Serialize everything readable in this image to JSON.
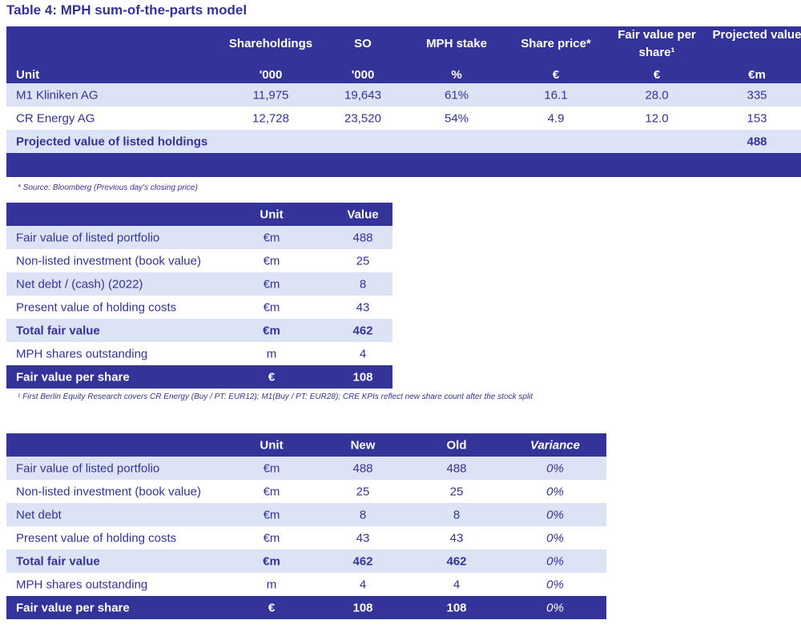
{
  "title": "Table 4: MPH sum-of-the-parts model",
  "table1": {
    "headers": [
      "Shareholdings",
      "SO",
      "MPH stake",
      "Share price*",
      "Fair value per share¹",
      "Projected value"
    ],
    "unit_label": "Unit",
    "units": [
      "'000",
      "'000",
      "%",
      "€",
      "€",
      "€m"
    ],
    "rows": [
      {
        "name": "M1 Kliniken AG",
        "values": [
          "11,975",
          "19,643",
          "61%",
          "16.1",
          "28.0",
          "335"
        ]
      },
      {
        "name": "CR Energy AG",
        "values": [
          "12,728",
          "23,520",
          "54%",
          "4.9",
          "12.0",
          "153"
        ]
      }
    ],
    "total": {
      "name": "Projected value of listed holdings",
      "value": "488"
    }
  },
  "source_note": "* Source: Bloomberg (Previous day's closing price)",
  "table2": {
    "headers": [
      "Unit",
      "Value"
    ],
    "rows": [
      [
        "Fair value of listed portfolio",
        "€m",
        "488"
      ],
      [
        "Non-listed investment (book value)",
        "€m",
        "25"
      ],
      [
        "Net debt / (cash) (2022)",
        "€m",
        "8"
      ],
      [
        "Present value of holding costs",
        "€m",
        "43"
      ],
      [
        "Total fair value",
        "€m",
        "462"
      ],
      [
        "MPH shares outstanding",
        "m",
        "4"
      ],
      [
        "Fair value per share",
        "€",
        "108"
      ]
    ]
  },
  "footnote": "¹ First Berlin Equity Research covers CR Energy (Buy /  PT: EUR12); M1(Buy / PT: EUR28); CRE KPIs reflect new share count after the stock split",
  "table3": {
    "headers": [
      "Unit",
      "New",
      "Old",
      "Variance"
    ],
    "rows": [
      [
        "Fair value of listed portfolio",
        "€m",
        "488",
        "488",
        "0%"
      ],
      [
        "Non-listed investment (book value)",
        "€m",
        "25",
        "25",
        "0%"
      ],
      [
        "Net debt",
        "€m",
        "8",
        "8",
        "0%"
      ],
      [
        "Present value of holding costs",
        "€m",
        "43",
        "43",
        "0%"
      ],
      [
        "Total fair value",
        "€m",
        "462",
        "462",
        "0%"
      ],
      [
        "MPH shares outstanding",
        "m",
        "4",
        "4",
        "0%"
      ],
      [
        "Fair value per share",
        "€",
        "108",
        "108",
        "0%"
      ]
    ]
  },
  "colors": {
    "navy": "#333399",
    "light_row": "#dce3f5"
  }
}
